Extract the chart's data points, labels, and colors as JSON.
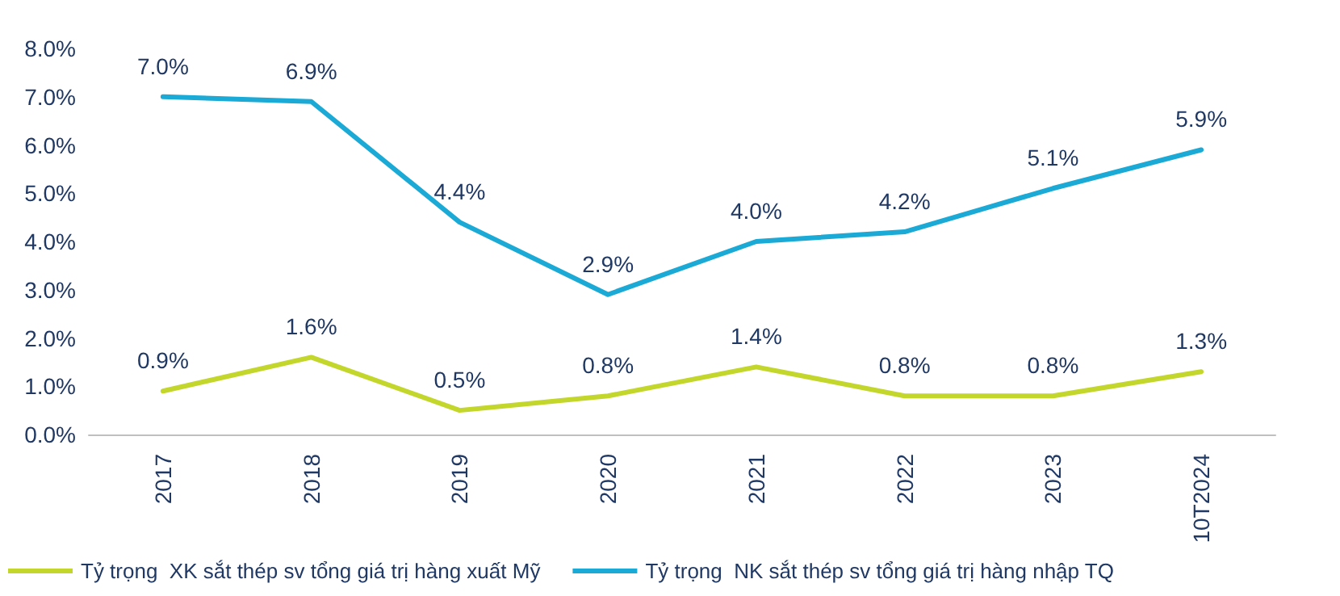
{
  "chart_data": {
    "type": "line",
    "categories": [
      "2017",
      "2018",
      "2019",
      "2020",
      "2021",
      "2022",
      "2023",
      "10T2024"
    ],
    "series": [
      {
        "name": "Tỷ trọng  XK sắt thép sv tổng giá trị hàng xuất Mỹ",
        "color": "#c3d62b",
        "values": [
          0.9,
          1.6,
          0.5,
          0.8,
          1.4,
          0.8,
          0.8,
          1.3
        ],
        "value_labels": [
          "0.9%",
          "1.6%",
          "0.5%",
          "0.8%",
          "1.4%",
          "0.8%",
          "0.8%",
          "1.3%"
        ]
      },
      {
        "name": "Tỷ trọng  NK sắt thép sv tổng giá trị hàng nhập TQ",
        "color": "#1ba9d6",
        "values": [
          7.0,
          6.9,
          4.4,
          2.9,
          4.0,
          4.2,
          5.1,
          5.9
        ],
        "value_labels": [
          "7.0%",
          "6.9%",
          "4.4%",
          "2.9%",
          "4.0%",
          "4.2%",
          "5.1%",
          "5.9%"
        ]
      }
    ],
    "ylim": [
      0,
      8
    ],
    "yticks": [
      {
        "value": 0,
        "label": "0.0%"
      },
      {
        "value": 1,
        "label": "1.0%"
      },
      {
        "value": 2,
        "label": "2.0%"
      },
      {
        "value": 3,
        "label": "3.0%"
      },
      {
        "value": 4,
        "label": "4.0%"
      },
      {
        "value": 5,
        "label": "5.0%"
      },
      {
        "value": 6,
        "label": "6.0%"
      },
      {
        "value": 7,
        "label": "7.0%"
      },
      {
        "value": 8,
        "label": "8.0%"
      }
    ],
    "grid": false,
    "legend": "bottom left",
    "marker": "none",
    "line_style": "solid"
  }
}
